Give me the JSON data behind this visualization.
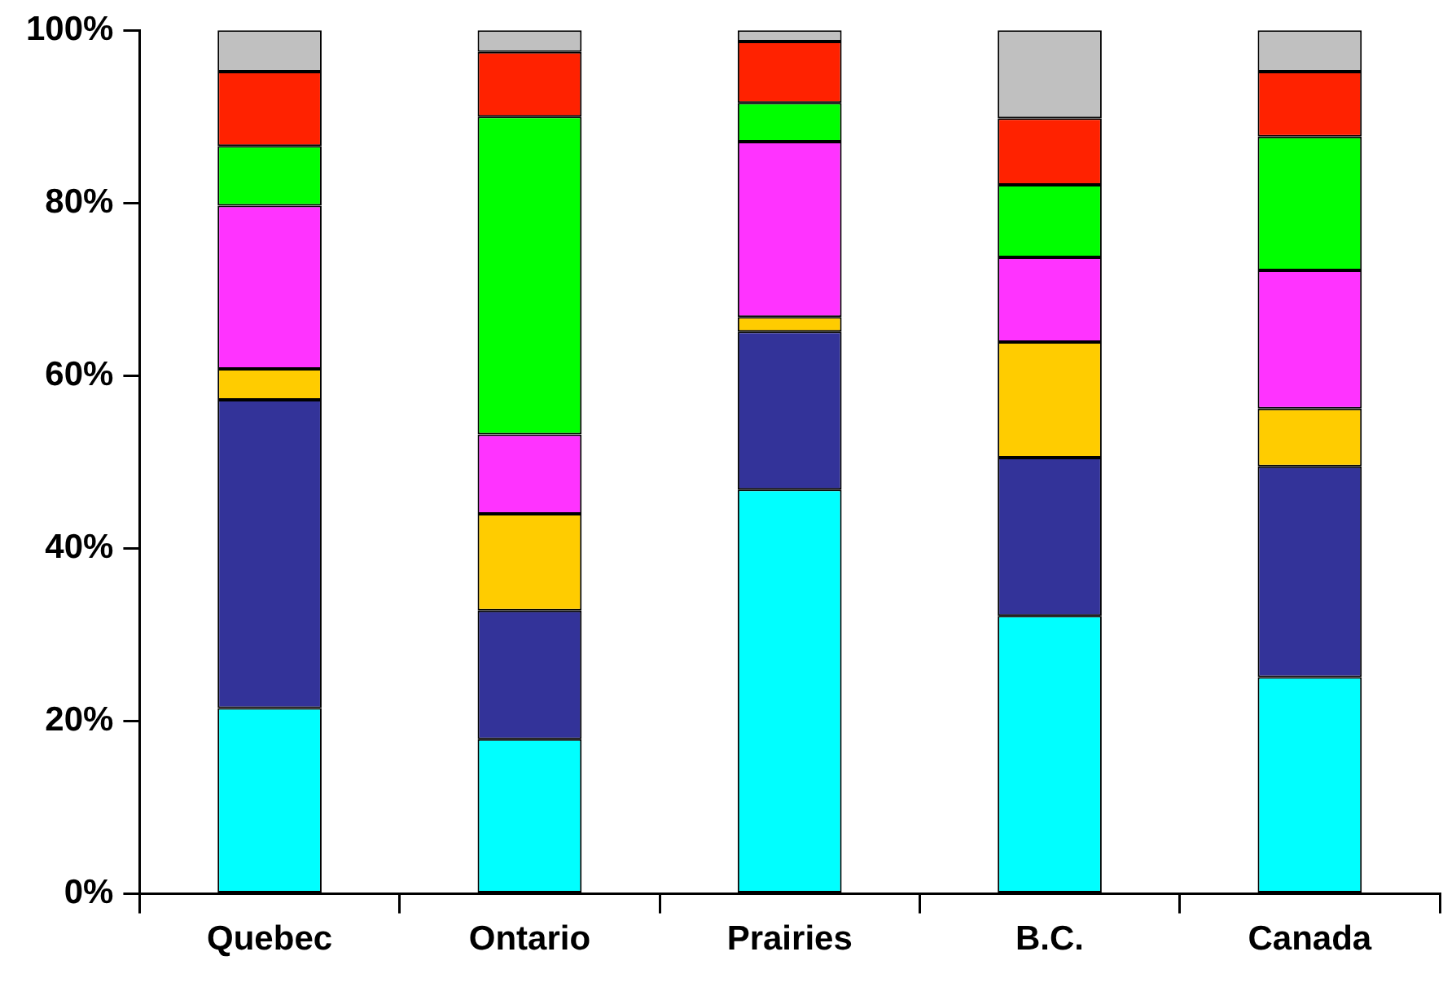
{
  "chart_data": {
    "type": "bar",
    "stacked": true,
    "categories": [
      "Quebec",
      "Ontario",
      "Prairies",
      "B.C.",
      "Canada"
    ],
    "series": [
      {
        "color": "#00ffff",
        "values": [
          21.5,
          17.9,
          46.8,
          32.2,
          25.1
        ]
      },
      {
        "color": "#333399",
        "values": [
          35.7,
          14.9,
          18.3,
          18.3,
          24.4
        ]
      },
      {
        "color": "#ffcc00",
        "values": [
          3.6,
          11.2,
          1.7,
          13.4,
          6.7
        ]
      },
      {
        "color": "#ff33ff",
        "values": [
          18.9,
          9.2,
          20.3,
          9.8,
          16.0
        ]
      },
      {
        "color": "#00ff00",
        "values": [
          6.9,
          36.8,
          4.5,
          8.4,
          15.5
        ]
      },
      {
        "color": "#ff2200",
        "values": [
          8.6,
          7.5,
          7.1,
          7.7,
          7.5
        ]
      },
      {
        "color": "#c0c0c0",
        "values": [
          4.8,
          2.5,
          1.3,
          10.2,
          4.8
        ]
      }
    ],
    "ylim": [
      0,
      100
    ],
    "yticks": [
      {
        "value": 0,
        "label": "0%"
      },
      {
        "value": 20,
        "label": "20%"
      },
      {
        "value": 40,
        "label": "40%"
      },
      {
        "value": 60,
        "label": "60%"
      },
      {
        "value": 80,
        "label": "80%"
      },
      {
        "value": 100,
        "label": "100%"
      }
    ],
    "grid": false,
    "legend": false
  }
}
